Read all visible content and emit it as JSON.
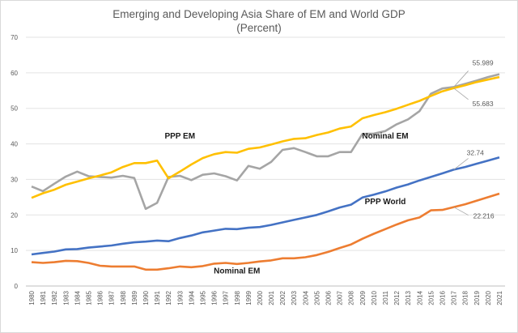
{
  "chart_data": {
    "type": "line",
    "title": "Emerging and Developing Asia Share of EM and World GDP",
    "subtitle": "(Percent)",
    "xlabel": "",
    "ylabel": "",
    "ylim": [
      0,
      70
    ],
    "yticks": [
      0,
      10,
      20,
      30,
      40,
      50,
      60,
      70
    ],
    "grid": true,
    "x": [
      "1980",
      "1981",
      "1982",
      "1983",
      "1984",
      "1985",
      "1986",
      "1987",
      "1988",
      "1989",
      "1990",
      "1991",
      "1992",
      "1993",
      "1994",
      "1995",
      "1996",
      "1997",
      "1998",
      "1999",
      "2000",
      "2001",
      "2002",
      "2003",
      "2004",
      "2005",
      "2006",
      "2007",
      "2008",
      "2009",
      "2010",
      "2011",
      "2012",
      "2013",
      "2014",
      "2015",
      "2016",
      "2017",
      "2018",
      "2019",
      "2020",
      "2021"
    ],
    "series": [
      {
        "color": "#A5A5A5",
        "values": [
          28.0,
          26.7,
          28.8,
          30.8,
          32.2,
          30.9,
          30.7,
          30.5,
          31.0,
          30.4,
          21.7,
          23.4,
          30.7,
          31.0,
          29.8,
          31.3,
          31.7,
          30.9,
          29.7,
          33.8,
          33.0,
          34.9,
          38.3,
          38.8,
          37.7,
          36.5,
          36.5,
          37.7,
          37.7,
          42.8,
          42.9,
          43.6,
          45.5,
          46.9,
          49.2,
          54.1,
          55.6,
          55.989,
          56.9,
          57.8,
          58.8,
          59.6
        ]
      },
      {
        "color": "#FFC000",
        "values": [
          24.8,
          26.1,
          27.1,
          28.5,
          29.4,
          30.3,
          31.1,
          32.0,
          33.5,
          34.6,
          34.6,
          35.3,
          30.3,
          32.2,
          34.2,
          36.0,
          37.1,
          37.7,
          37.5,
          38.6,
          39.0,
          39.8,
          40.7,
          41.4,
          41.6,
          42.5,
          43.2,
          44.3,
          44.9,
          47.2,
          48.1,
          48.9,
          49.9,
          51.0,
          52.1,
          53.5,
          54.8,
          55.683,
          56.5,
          57.4,
          58.1,
          58.8
        ]
      },
      {
        "color": "#4472C4",
        "values": [
          8.9,
          9.3,
          9.7,
          10.3,
          10.4,
          10.8,
          11.1,
          11.4,
          11.9,
          12.3,
          12.5,
          12.8,
          12.6,
          13.5,
          14.2,
          15.1,
          15.6,
          16.1,
          16.0,
          16.4,
          16.6,
          17.2,
          17.9,
          18.6,
          19.3,
          20.0,
          21.0,
          22.1,
          22.9,
          24.9,
          25.7,
          26.6,
          27.7,
          28.6,
          29.7,
          30.7,
          31.7,
          32.74,
          33.5,
          34.4,
          35.3,
          36.2
        ]
      },
      {
        "color": "#ED7D31",
        "values": [
          6.7,
          6.5,
          6.7,
          7.1,
          7.0,
          6.5,
          5.7,
          5.5,
          5.5,
          5.5,
          4.6,
          4.6,
          5.0,
          5.5,
          5.3,
          5.6,
          6.3,
          6.5,
          6.2,
          6.5,
          6.9,
          7.2,
          7.8,
          7.8,
          8.1,
          8.7,
          9.6,
          10.7,
          11.7,
          13.3,
          14.7,
          16.0,
          17.3,
          18.5,
          19.3,
          21.3,
          21.4,
          22.216,
          23.0,
          24.0,
          25.0,
          26.0
        ]
      }
    ],
    "annotations": [
      {
        "text": "PPP EM",
        "x": "1993",
        "y": 41.5
      },
      {
        "text": "Nominal EM",
        "x": "2011",
        "y": 41.5
      },
      {
        "text": "PPP  World",
        "x": "2011",
        "y": 23.0
      },
      {
        "text": "Nominal EM",
        "x": "1998",
        "y": 3.5
      }
    ],
    "data_labels": [
      {
        "text": "55.989",
        "series": 0,
        "x": "2017",
        "y": 55.989
      },
      {
        "text": "55.683",
        "series": 1,
        "x": "2017",
        "y": 55.683
      },
      {
        "text": "32.74",
        "series": 2,
        "x": "2017",
        "y": 32.74
      },
      {
        "text": "22.216",
        "series": 3,
        "x": "2017",
        "y": 22.216
      }
    ]
  }
}
